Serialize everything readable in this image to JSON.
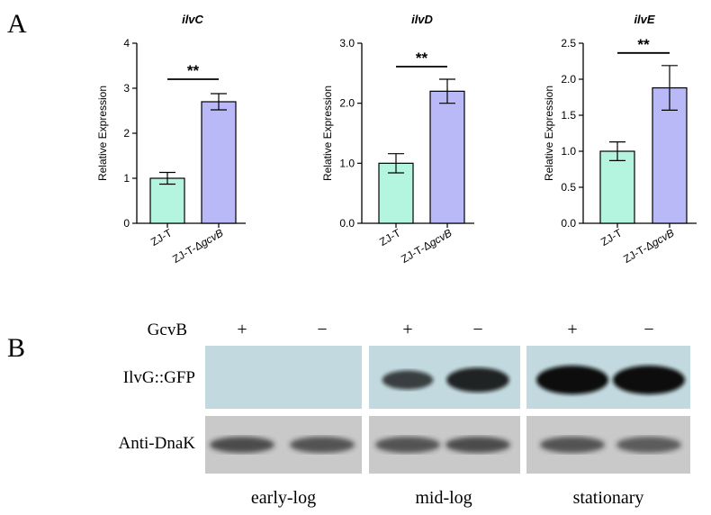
{
  "panels": {
    "a_label": "A",
    "b_label": "B"
  },
  "chart_data": [
    {
      "type": "bar",
      "title": "ilvC",
      "ylabel": "Relative Expression",
      "categories": [
        "ZJ-T",
        "ZJ-T-ΔgcvB"
      ],
      "values": [
        1.0,
        2.7
      ],
      "errors": [
        0.13,
        0.18
      ],
      "ylim": [
        0,
        4
      ],
      "yticks": [
        0,
        1,
        2,
        3,
        4
      ],
      "ytick_labels": [
        "0",
        "1",
        "2",
        "3",
        "4"
      ],
      "significance": "**",
      "colors": [
        "#b3f5df",
        "#b9b9f7"
      ]
    },
    {
      "type": "bar",
      "title": "ilvD",
      "ylabel": "Relative Expression",
      "categories": [
        "ZJ-T",
        "ZJ-T-ΔgcvB"
      ],
      "values": [
        1.0,
        2.2
      ],
      "errors": [
        0.16,
        0.2
      ],
      "ylim": [
        0,
        3
      ],
      "yticks": [
        0,
        1,
        2,
        3
      ],
      "ytick_labels": [
        "0.0",
        "1.0",
        "2.0",
        "3.0"
      ],
      "significance": "**",
      "colors": [
        "#b3f5df",
        "#b9b9f7"
      ]
    },
    {
      "type": "bar",
      "title": "ilvE",
      "ylabel": "Relative Expression",
      "categories": [
        "ZJ-T",
        "ZJ-T-ΔgcvB"
      ],
      "values": [
        1.0,
        1.88
      ],
      "errors": [
        0.13,
        0.31
      ],
      "ylim": [
        0,
        2.5
      ],
      "yticks": [
        0,
        0.5,
        1.0,
        1.5,
        2.0,
        2.5
      ],
      "ytick_labels": [
        "0.0",
        "0.5",
        "1.0",
        "1.5",
        "2.0",
        "2.5"
      ],
      "significance": "**",
      "colors": [
        "#b3f5df",
        "#b9b9f7"
      ]
    }
  ],
  "blot": {
    "gcvb_label": "GcvB",
    "gcvb_signs": [
      "+",
      "−",
      "+",
      "−",
      "+",
      "−"
    ],
    "row_labels": [
      "IlvG::GFP",
      "Anti-DnaK"
    ],
    "phases": [
      "early-log",
      "mid-log",
      "stationary"
    ],
    "gfp_intensity": [
      0,
      0,
      0.55,
      0.8,
      1.0,
      1.0
    ],
    "dnak_intensity": [
      0.75,
      0.7,
      0.7,
      0.75,
      0.7,
      0.65
    ],
    "gfp_background": "#c2dadf",
    "dnak_background": "#c9c9c9"
  }
}
